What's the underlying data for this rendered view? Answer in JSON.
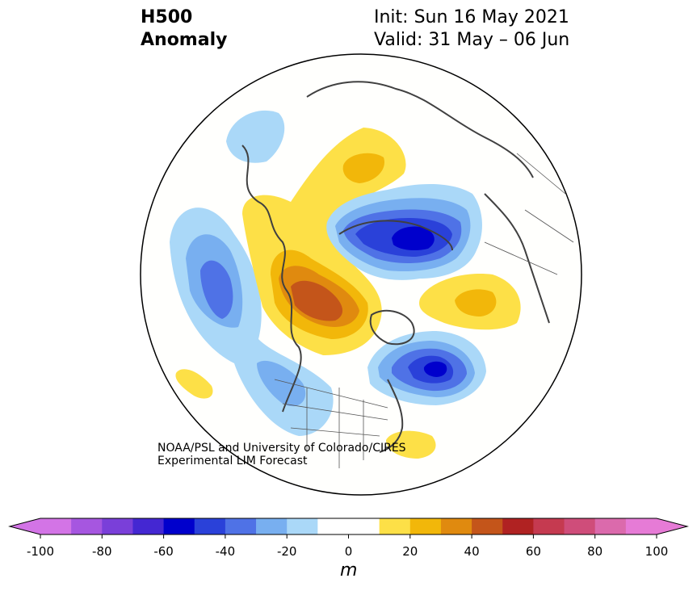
{
  "title": {
    "main_line1": "H500",
    "main_line2": "Anomaly",
    "init": "Init: Sun 16 May 2021",
    "valid": "Valid: 31 May – 06 Jun"
  },
  "credit": {
    "line1": "NOAA/PSL and University of Colorado/CIRES",
    "line2": "Experimental LIM Forecast"
  },
  "colorbar": {
    "unit": "m",
    "ticks": [
      "-100",
      "-80",
      "-60",
      "-40",
      "-20",
      "0",
      "20",
      "40",
      "60",
      "80",
      "100"
    ],
    "colors": [
      "#d374e6",
      "#a656e0",
      "#7a3fd9",
      "#4427d2",
      "#0000cc",
      "#2a41d9",
      "#4f72e6",
      "#78aff0",
      "#aad8f8",
      "#ffffff",
      "#ffffff",
      "#fde047",
      "#f2b70a",
      "#e08a0f",
      "#c4551a",
      "#b02222",
      "#c53a50",
      "#cf4d7a",
      "#db6aac",
      "#e67bd6"
    ],
    "left_extend_color": "#d374e6",
    "right_extend_color": "#e67bd6"
  },
  "map": {
    "projection": "north polar stereographic",
    "background": "#fffffd",
    "coastline_color": "#404040"
  }
}
